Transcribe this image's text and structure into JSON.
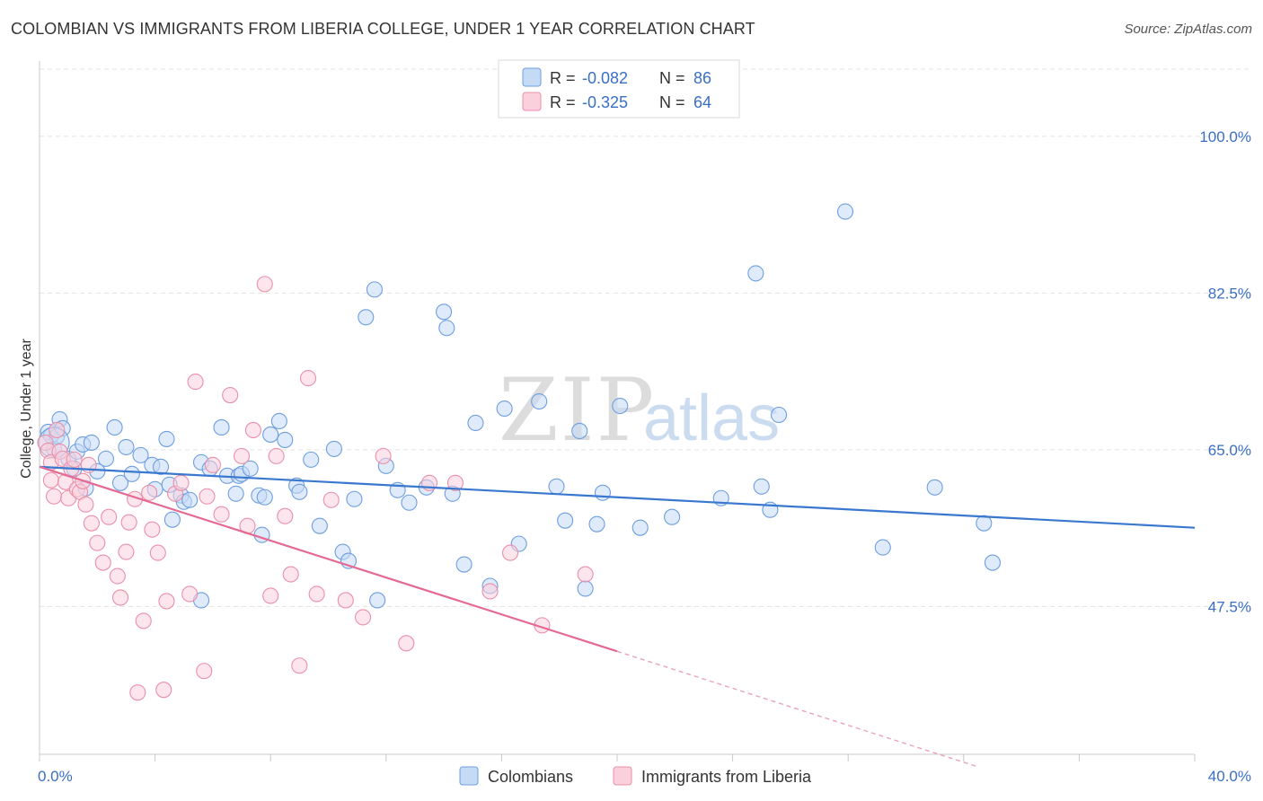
{
  "header": {
    "title": "COLOMBIAN VS IMMIGRANTS FROM LIBERIA COLLEGE, UNDER 1 YEAR CORRELATION CHART",
    "source": "Source: ZipAtlas.com"
  },
  "watermark": {
    "zip": "ZIP",
    "atlas": "atlas"
  },
  "legend": {
    "rows": [
      {
        "r_label": "R =",
        "r_value": "-0.082",
        "n_label": "N =",
        "n_value": "86",
        "color": "#a9c8f0"
      },
      {
        "r_label": "R =",
        "r_value": "-0.325",
        "n_label": "N =",
        "n_value": "64",
        "color": "#f5b8c9"
      }
    ]
  },
  "bottom_legend": [
    {
      "label": "Colombians",
      "color": "#a9c8f0"
    },
    {
      "label": "Immigrants from Liberia",
      "color": "#f5b8c9"
    }
  ],
  "chart_data": {
    "type": "scatter",
    "title": "COLOMBIAN VS IMMIGRANTS FROM LIBERIA COLLEGE, UNDER 1 YEAR CORRELATION CHART",
    "xlabel": "",
    "ylabel": "College, Under 1 year",
    "xlim": [
      0,
      40
    ],
    "ylim": [
      31,
      107
    ],
    "x_tick_labels": [
      "0.0%",
      "40.0%"
    ],
    "y_ticks": [
      47.5,
      65.0,
      82.5,
      100.0
    ],
    "y_tick_labels": [
      "47.5%",
      "65.0%",
      "82.5%",
      "100.0%"
    ],
    "grid": true,
    "legend_position": "top-center",
    "series": [
      {
        "name": "Colombians",
        "color": "#6d9ee0",
        "fill": "#c5dbf5",
        "trend": {
          "x": [
            0,
            40
          ],
          "y": [
            63.1,
            56.3
          ],
          "style": "solid"
        },
        "points": [
          [
            0.3,
            67.0
          ],
          [
            0.4,
            66.6
          ],
          [
            0.5,
            65.1
          ],
          [
            0.6,
            66.5
          ],
          [
            0.7,
            68.4
          ],
          [
            0.8,
            67.4
          ],
          [
            1.0,
            64.0
          ],
          [
            1.2,
            62.9
          ],
          [
            1.3,
            64.8
          ],
          [
            1.5,
            65.6
          ],
          [
            1.6,
            60.7
          ],
          [
            1.8,
            65.8
          ],
          [
            2.0,
            62.6
          ],
          [
            2.3,
            64.0
          ],
          [
            2.6,
            67.5
          ],
          [
            2.8,
            61.3
          ],
          [
            3.0,
            65.3
          ],
          [
            3.2,
            62.3
          ],
          [
            3.5,
            64.4
          ],
          [
            3.9,
            63.3
          ],
          [
            4.0,
            60.6
          ],
          [
            4.2,
            63.1
          ],
          [
            4.4,
            66.2
          ],
          [
            4.5,
            61.1
          ],
          [
            4.6,
            57.2
          ],
          [
            4.9,
            59.9
          ],
          [
            5.0,
            59.2
          ],
          [
            5.2,
            59.4
          ],
          [
            5.6,
            63.6
          ],
          [
            5.6,
            48.2
          ],
          [
            5.9,
            62.9
          ],
          [
            6.3,
            67.5
          ],
          [
            6.5,
            62.1
          ],
          [
            6.8,
            60.1
          ],
          [
            6.9,
            62.1
          ],
          [
            7.0,
            62.3
          ],
          [
            7.3,
            62.9
          ],
          [
            7.6,
            59.9
          ],
          [
            7.7,
            55.5
          ],
          [
            7.8,
            59.7
          ],
          [
            8.0,
            66.7
          ],
          [
            8.3,
            68.2
          ],
          [
            8.5,
            66.1
          ],
          [
            8.9,
            61.0
          ],
          [
            9.0,
            60.3
          ],
          [
            9.4,
            63.9
          ],
          [
            9.7,
            56.5
          ],
          [
            10.2,
            65.1
          ],
          [
            10.5,
            53.6
          ],
          [
            10.7,
            52.6
          ],
          [
            10.9,
            59.5
          ],
          [
            11.3,
            79.8
          ],
          [
            11.6,
            82.9
          ],
          [
            11.7,
            48.2
          ],
          [
            12.0,
            63.2
          ],
          [
            12.4,
            60.5
          ],
          [
            12.8,
            59.1
          ],
          [
            13.4,
            60.8
          ],
          [
            14.0,
            80.4
          ],
          [
            14.1,
            78.6
          ],
          [
            14.3,
            60.1
          ],
          [
            14.7,
            52.2
          ],
          [
            15.1,
            68.0
          ],
          [
            15.6,
            49.8
          ],
          [
            16.1,
            69.6
          ],
          [
            16.6,
            54.5
          ],
          [
            17.3,
            70.4
          ],
          [
            17.9,
            60.9
          ],
          [
            18.2,
            57.1
          ],
          [
            18.7,
            67.1
          ],
          [
            18.9,
            49.5
          ],
          [
            19.3,
            56.7
          ],
          [
            19.5,
            60.2
          ],
          [
            20.1,
            69.9
          ],
          [
            20.8,
            56.3
          ],
          [
            21.9,
            57.5
          ],
          [
            23.6,
            59.6
          ],
          [
            24.8,
            84.7
          ],
          [
            25.0,
            60.9
          ],
          [
            25.3,
            58.3
          ],
          [
            25.6,
            68.9
          ],
          [
            27.9,
            91.6
          ],
          [
            29.2,
            54.1
          ],
          [
            31.0,
            60.8
          ],
          [
            32.7,
            56.8
          ],
          [
            33.0,
            52.4
          ]
        ]
      },
      {
        "name": "Immigrants from Liberia",
        "color": "#ea8fa9",
        "fill": "#f9d0dc",
        "trend": {
          "x": [
            0,
            20
          ],
          "y": [
            63.1,
            42.5
          ],
          "style": "solid"
        },
        "trend_extension": {
          "x": [
            20,
            32.5
          ],
          "y": [
            42.5,
            29.6
          ],
          "style": "dashed"
        },
        "points": [
          [
            0.2,
            65.8
          ],
          [
            0.3,
            64.9
          ],
          [
            0.4,
            63.6
          ],
          [
            0.4,
            61.6
          ],
          [
            0.5,
            59.8
          ],
          [
            0.6,
            67.2
          ],
          [
            0.7,
            64.8
          ],
          [
            0.8,
            64.0
          ],
          [
            0.9,
            61.4
          ],
          [
            1.0,
            59.6
          ],
          [
            1.1,
            62.9
          ],
          [
            1.2,
            63.9
          ],
          [
            1.3,
            60.6
          ],
          [
            1.4,
            60.3
          ],
          [
            1.5,
            61.5
          ],
          [
            1.6,
            58.9
          ],
          [
            1.7,
            63.3
          ],
          [
            1.8,
            56.8
          ],
          [
            2.0,
            54.6
          ],
          [
            2.2,
            52.4
          ],
          [
            2.4,
            57.5
          ],
          [
            2.7,
            50.9
          ],
          [
            2.8,
            48.5
          ],
          [
            3.0,
            53.6
          ],
          [
            3.1,
            56.9
          ],
          [
            3.3,
            59.5
          ],
          [
            3.4,
            37.9
          ],
          [
            3.6,
            45.9
          ],
          [
            3.8,
            60.2
          ],
          [
            3.9,
            56.1
          ],
          [
            4.1,
            53.5
          ],
          [
            4.3,
            38.2
          ],
          [
            4.4,
            48.1
          ],
          [
            4.7,
            60.1
          ],
          [
            4.9,
            61.3
          ],
          [
            5.2,
            48.9
          ],
          [
            5.4,
            72.6
          ],
          [
            5.7,
            40.3
          ],
          [
            5.8,
            59.8
          ],
          [
            6.0,
            63.3
          ],
          [
            6.3,
            57.8
          ],
          [
            6.6,
            71.1
          ],
          [
            7.0,
            64.3
          ],
          [
            7.2,
            56.5
          ],
          [
            7.4,
            67.2
          ],
          [
            7.8,
            83.5
          ],
          [
            8.0,
            48.7
          ],
          [
            8.2,
            64.3
          ],
          [
            8.5,
            57.6
          ],
          [
            8.7,
            51.1
          ],
          [
            9.0,
            40.9
          ],
          [
            9.3,
            73.0
          ],
          [
            9.6,
            48.9
          ],
          [
            10.1,
            59.4
          ],
          [
            10.6,
            48.2
          ],
          [
            11.2,
            46.3
          ],
          [
            11.9,
            64.3
          ],
          [
            12.7,
            43.4
          ],
          [
            13.5,
            61.3
          ],
          [
            14.4,
            61.3
          ],
          [
            15.6,
            49.2
          ],
          [
            16.3,
            53.5
          ],
          [
            17.4,
            45.4
          ],
          [
            18.9,
            51.1
          ]
        ]
      }
    ]
  }
}
